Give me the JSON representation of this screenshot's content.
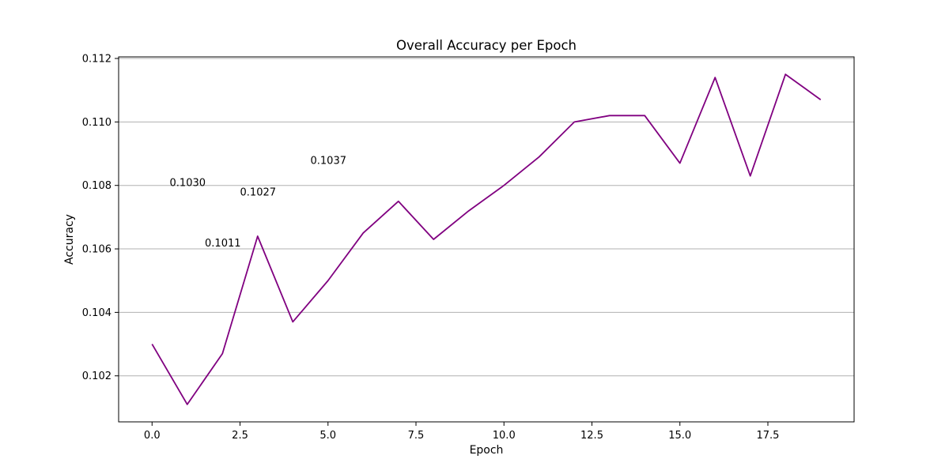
{
  "chart_data": {
    "type": "line",
    "title": "Overall Accuracy per Epoch",
    "xlabel": "Epoch",
    "ylabel": "Accuracy",
    "xlim": [
      -0.95,
      19.95
    ],
    "ylim": [
      0.10055,
      0.11205
    ],
    "x_ticks": [
      0.0,
      2.5,
      5.0,
      7.5,
      10.0,
      12.5,
      15.0,
      17.5
    ],
    "x_tick_labels": [
      "0.0",
      "2.5",
      "5.0",
      "7.5",
      "10.0",
      "12.5",
      "15.0",
      "17.5"
    ],
    "y_ticks": [
      0.102,
      0.104,
      0.106,
      0.108,
      0.11,
      0.112
    ],
    "y_tick_labels": [
      "0.102",
      "0.104",
      "0.106",
      "0.108",
      "0.110",
      "0.112"
    ],
    "grid": "horizontal",
    "line_color": "#800080",
    "series": [
      {
        "x": [
          0,
          1,
          2,
          3,
          4,
          5,
          6,
          7,
          8,
          9,
          10,
          11,
          12,
          13,
          14,
          15,
          16,
          17,
          18,
          19
        ],
        "values": [
          0.103,
          0.1011,
          0.1027,
          0.1064,
          0.1037,
          0.105,
          0.1065,
          0.1075,
          0.1063,
          0.1072,
          0.108,
          0.1089,
          0.11,
          0.1102,
          0.1102,
          0.1087,
          0.1114,
          0.1083,
          0.1115,
          0.1107
        ]
      }
    ],
    "annotations": [
      {
        "text": "0.1030",
        "x": 0,
        "y": 0.103
      },
      {
        "text": "0.1011",
        "x": 1,
        "y": 0.1011
      },
      {
        "text": "0.1027",
        "x": 2,
        "y": 0.1027
      },
      {
        "text": "0.1037",
        "x": 4,
        "y": 0.1037
      }
    ]
  }
}
